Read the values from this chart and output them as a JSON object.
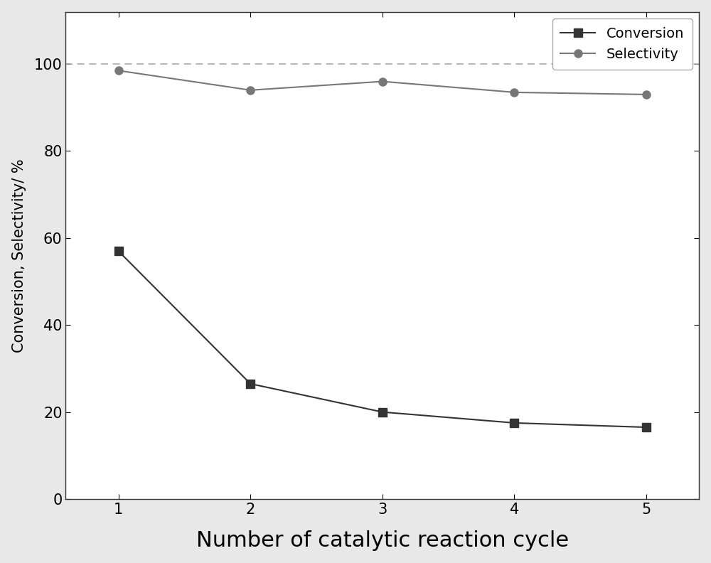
{
  "x": [
    1,
    2,
    3,
    4,
    5
  ],
  "conversion": [
    57,
    26.5,
    20,
    17.5,
    16.5
  ],
  "selectivity": [
    98.5,
    94,
    96,
    93.5,
    93
  ],
  "conversion_color": "#333333",
  "selectivity_color": "#777777",
  "conversion_marker": "s",
  "selectivity_marker": "o",
  "marker_size": 8,
  "linewidth": 1.5,
  "xlabel": "Number of catalytic reaction cycle",
  "ylabel": "Conversion, Selectivity/ %",
  "xlim": [
    0.6,
    5.4
  ],
  "ylim": [
    0,
    112
  ],
  "yticks": [
    0,
    20,
    40,
    60,
    80,
    100
  ],
  "xticks": [
    1,
    2,
    3,
    4,
    5
  ],
  "dashed_line_y": 100,
  "dashed_line_color": "#aaaaaa",
  "legend_labels": [
    "Conversion",
    "Selectivity"
  ],
  "xlabel_fontsize": 22,
  "ylabel_fontsize": 15,
  "tick_fontsize": 15,
  "legend_fontsize": 14,
  "figure_background_color": "#e8e8e8",
  "plot_background_color": "#ffffff"
}
